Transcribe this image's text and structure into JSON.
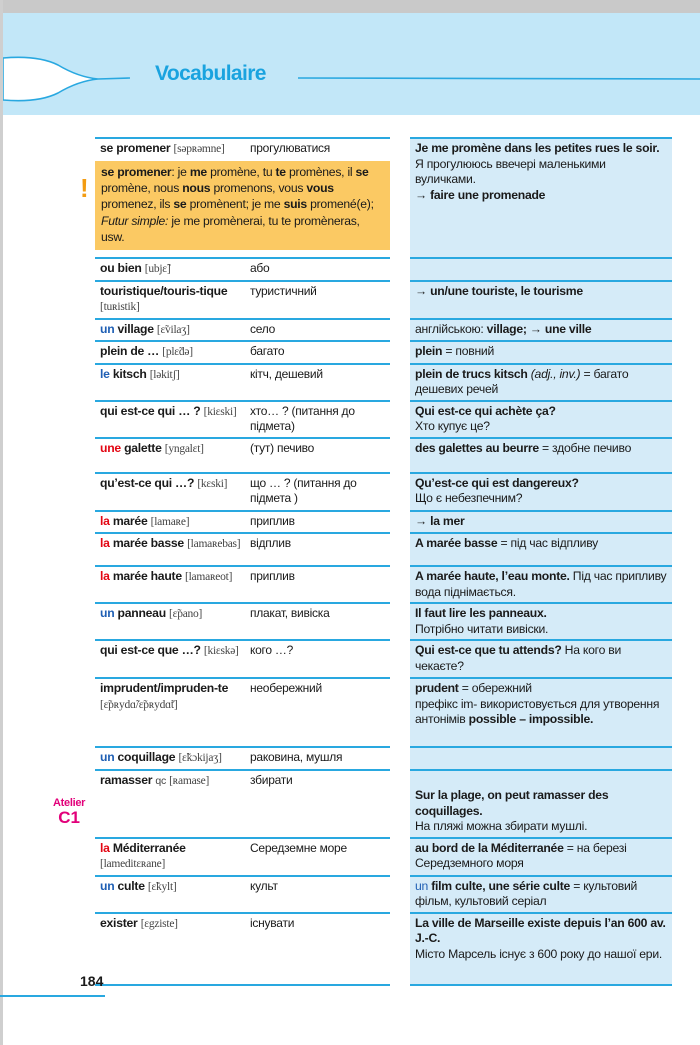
{
  "header": {
    "title": "Vocabulaire"
  },
  "colors": {
    "accent": "#29a8e0",
    "band": "#c2e7f8",
    "note_bg": "#fbc963",
    "example_bg": "#d5ebf8",
    "masculine": "#1f5fb4",
    "feminine": "#e30613",
    "atelier": "#e2007a"
  },
  "note_icon": "exclamation-icon",
  "note": [
    {
      "text": "se promener",
      "s": "b"
    },
    {
      "text": ": je "
    },
    {
      "text": "me",
      "s": "b"
    },
    {
      "text": " promène, tu "
    },
    {
      "text": "te",
      "s": "b"
    },
    {
      "text": " promènes, il "
    },
    {
      "text": "se",
      "s": "b"
    },
    {
      "text": " promène, nous "
    },
    {
      "text": "nous",
      "s": "b"
    },
    {
      "text": " promenons, vous "
    },
    {
      "text": "vous",
      "s": "b"
    },
    {
      "text": " promenez, ils "
    },
    {
      "text": "se",
      "s": "b"
    },
    {
      "text": " promènent; je me "
    },
    {
      "text": "suis",
      "s": "b"
    },
    {
      "text": " promené(e); "
    },
    {
      "text": "Futur simple:",
      "s": "i"
    },
    {
      "text": " je me promènerai, tu te promèneras, usw."
    }
  ],
  "atelier": {
    "label": "Atelier",
    "code": "C1"
  },
  "page_number": "184",
  "entries": [
    {
      "word": "se promener",
      "phon": "[səpʀəmne]",
      "trans": "прогулюватися",
      "example": [
        {
          "text": "Je me promène dans les petites rues le soir.",
          "s": "b"
        },
        {
          "text": "\nЯ прогулююсь ввечері маленькими вуличками."
        },
        {
          "text": "\n→ faire une promenade",
          "s": "b"
        }
      ]
    },
    {
      "word": "ou bien",
      "phon": "[ubjɛ̃]",
      "trans": "або",
      "example": []
    },
    {
      "word": "touristique/touris-tique",
      "phon": "[tuʀistik]",
      "trans": "туристичний",
      "example": [
        {
          "text": "→ un/une touriste, le tourisme",
          "s": "b"
        }
      ]
    },
    {
      "article": "un",
      "gender": "m",
      "word": "village",
      "phon": "[ɛ̃vilaʒ]",
      "trans": "село",
      "example": [
        {
          "text": "англійською: "
        },
        {
          "text": "village; → une ville",
          "s": "b"
        }
      ]
    },
    {
      "word": "plein de …",
      "phon": "[plɛ̃də]",
      "trans": "багато",
      "example": [
        {
          "text": "plein",
          "s": "b"
        },
        {
          "text": " = повний"
        }
      ]
    },
    {
      "article": "le",
      "gender": "m",
      "word": "kitsch",
      "phon": "[ləkitʃ]",
      "trans": "кітч, дешевий",
      "example": [
        {
          "text": "plein de trucs kitsch",
          "s": "b"
        },
        {
          "text": " (adj., inv.)",
          "s": "i"
        },
        {
          "text": " = багато дешевих речей"
        }
      ]
    },
    {
      "word": "qui est-ce qui … ?",
      "phon": "[kiɛski]",
      "trans": "хто… ? (питання до підмета)",
      "example": [
        {
          "text": "Qui est-ce qui achète ça?",
          "s": "b"
        },
        {
          "text": "\nХто купує це?"
        }
      ]
    },
    {
      "article": "une",
      "gender": "f",
      "word": "galette",
      "phon": "[yngalɛt]",
      "trans": "(тут) печиво",
      "example": [
        {
          "text": "des galettes au beurre",
          "s": "b"
        },
        {
          "text": " = здобне печиво"
        }
      ]
    },
    {
      "word": "qu’est-ce qui …?",
      "phon": "[kɛski]",
      "trans": "що … ? (питання до підмета )",
      "example": [
        {
          "text": "Qu’est-ce qui est dangereux?",
          "s": "b"
        },
        {
          "text": "\nЩо є небезпечним?"
        }
      ]
    },
    {
      "article": "la",
      "gender": "f",
      "word": "marée",
      "phon": "[lamaʀe]",
      "trans": "приплив",
      "example": [
        {
          "text": "→ la mer",
          "s": "b"
        }
      ]
    },
    {
      "article": "la",
      "gender": "f",
      "word": "marée basse",
      "phon": "[lamaʀebas]",
      "trans": "відплив",
      "example": [
        {
          "text": "A marée basse",
          "s": "b"
        },
        {
          "text": " = під час відпливу"
        }
      ]
    },
    {
      "article": "la",
      "gender": "f",
      "word": "marée haute",
      "phon": "[lamaʀeot]",
      "trans": "приплив",
      "example": [
        {
          "text": "A marée haute, l’eau monte.",
          "s": "b"
        },
        {
          "text": "   Під час припливу вода піднімається."
        }
      ]
    },
    {
      "article": "un",
      "gender": "m",
      "word": "panneau",
      "phon": "[ɛ̃pano]",
      "trans": "плакат, вивіска",
      "example": [
        {
          "text": "Il faut lire les panneaux.",
          "s": "b"
        },
        {
          "text": "\nПотрібно читати вивіски."
        }
      ]
    },
    {
      "word": "qui est-ce que …?",
      "phon": "[kiɛskə]",
      "trans": "кого …?",
      "example": [
        {
          "text": "Qui est-ce que tu attends?",
          "s": "b"
        },
        {
          "text": "   На кого ви чекаєте?"
        }
      ]
    },
    {
      "word": "imprudent/impruden-te",
      "phon": "[ɛ̃pʀydɑ̃/ɛ̃pʀydɑ̃t]",
      "trans": "необережний",
      "example": [
        {
          "text": "prudent",
          "s": "b"
        },
        {
          "text": " = обережний\nпрефікс im- використовується для утворення антонімів "
        },
        {
          "text": "possible – impossible.",
          "s": "b"
        }
      ]
    },
    {
      "article": "un",
      "gender": "m",
      "word": "coquillage",
      "phon": "[ɛ̃kɔkijaʒ]",
      "trans": "раковина, мушля",
      "example": []
    },
    {
      "word": "ramasser",
      "suffix": "qc",
      "phon": "[ʀamase]",
      "trans": "збирати",
      "example": [
        {
          "text": "\nSur la plage, on peut ramasser des coquillages.",
          "s": "b"
        },
        {
          "text": "\nНа пляжі можна збирати мушлі."
        }
      ]
    },
    {
      "article": "la",
      "gender": "f",
      "word": "Méditerranée",
      "phon": "[lameditεʀane]",
      "trans": "Середземне море",
      "example": [
        {
          "text": "au bord de la Méditerranée",
          "s": "b"
        },
        {
          "text": " = на березі Середземного моря"
        }
      ]
    },
    {
      "article": "un",
      "gender": "m",
      "word": "culte",
      "phon": "[ɛ̃kylt]",
      "trans": "культ",
      "example": [
        {
          "text": "un",
          "s": "m"
        },
        {
          "text": " film culte, une série culte",
          "s": "b"
        },
        {
          "text": " = культовий фільм, культовий серіал"
        }
      ]
    },
    {
      "word": "exister",
      "phon": "[ɛgziste]",
      "trans": "існувати",
      "example": [
        {
          "text": "La ville de Marseille existe depuis l’an 600 av. J.-C.",
          "s": "b"
        },
        {
          "text": "\nМісто Марсель існує з 600 року до нашої ери."
        }
      ]
    }
  ]
}
